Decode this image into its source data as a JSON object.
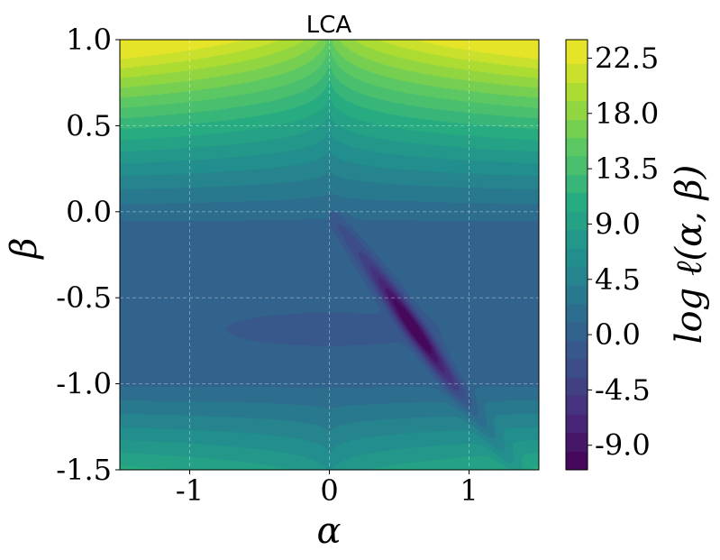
{
  "chart_data": {
    "type": "contour",
    "title": "LCA",
    "xlabel": "α",
    "ylabel": "β",
    "colorbar_label": "log ℓ(α, β)",
    "colormap": "viridis",
    "xlim": [
      -1.5,
      1.5
    ],
    "ylim": [
      -1.5,
      1.0
    ],
    "x_ticks": [
      -1,
      0,
      1
    ],
    "x_tick_labels": [
      "-1",
      "0",
      "1"
    ],
    "y_ticks": [
      1.0,
      0.5,
      0.0,
      -0.5,
      -1.0,
      -1.5
    ],
    "y_tick_labels": [
      "1.0",
      "0.5",
      "0.0",
      "-0.5",
      "-1.0",
      "-1.5"
    ],
    "colorbar_range": [
      -11,
      24
    ],
    "colorbar_ticks": [
      22.5,
      18.0,
      13.5,
      9.0,
      4.5,
      0.0,
      -4.5,
      -9.0
    ],
    "colorbar_tick_labels": [
      "22.5",
      "18.0",
      "13.5",
      "9.0",
      "4.5",
      "0.0",
      "-4.5",
      "-9.0"
    ],
    "contour_levels": [
      -11,
      -9.5,
      -8,
      -6.5,
      -5,
      -3.5,
      -2,
      -0.5,
      1,
      2.5,
      4,
      5.5,
      7,
      8.5,
      10,
      11.5,
      13,
      14.5,
      16,
      17.5,
      19,
      20.5,
      22,
      23.5
    ],
    "grid": true,
    "minimum_approx": {
      "alpha": 0.6,
      "beta": -0.7
    }
  }
}
